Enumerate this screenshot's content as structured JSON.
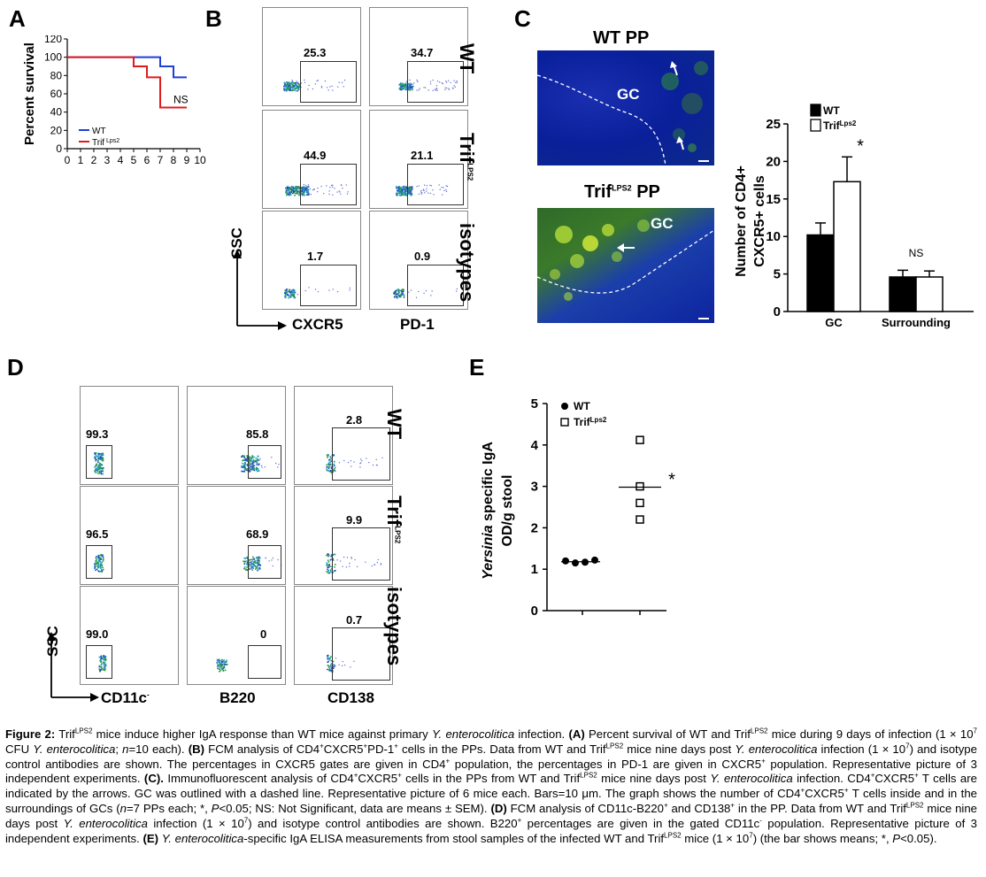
{
  "panels": {
    "A": "A",
    "B": "B",
    "C": "C",
    "D": "D",
    "E": "E"
  },
  "chart_data": [
    {
      "type": "line",
      "panel": "A",
      "ylabel": "Percent survival",
      "xlim": [
        0,
        10
      ],
      "ylim": [
        0,
        120
      ],
      "xticks": [
        "0",
        "1",
        "2",
        "3",
        "4",
        "5",
        "6",
        "7",
        "8",
        "9",
        "10"
      ],
      "yticks": [
        "0",
        "20",
        "40",
        "60",
        "80",
        "100",
        "120"
      ],
      "series": [
        {
          "name": "WT",
          "color": "#1f3fd6",
          "x": [
            0,
            5,
            7,
            8,
            9
          ],
          "y": [
            100,
            100,
            90,
            78,
            78
          ]
        },
        {
          "name": "Trif",
          "name_sup": "Lps2",
          "color": "#e01b1b",
          "x": [
            0,
            5,
            6,
            7,
            9
          ],
          "y": [
            100,
            90,
            78,
            45,
            45
          ]
        }
      ],
      "annotation": "NS"
    },
    {
      "type": "bar",
      "panel": "C",
      "ylabel_lines": [
        "Number of CD4+",
        "CXCR5+ cells"
      ],
      "categories": [
        "GC",
        "Surrounding"
      ],
      "ylim": [
        0,
        25
      ],
      "yticks": [
        "0",
        "5",
        "10",
        "15",
        "20",
        "25"
      ],
      "series": [
        {
          "name": "WT",
          "color": "#000000",
          "values": [
            10.2,
            4.6
          ],
          "errors": [
            1.6,
            0.9
          ]
        },
        {
          "name": "Trif",
          "name_sup": "Lps2",
          "color": "#ffffff",
          "values": [
            17.3,
            4.6
          ],
          "errors": [
            3.3,
            0.8
          ]
        }
      ],
      "annotations": [
        "*",
        "NS"
      ]
    },
    {
      "type": "scatter",
      "panel": "E",
      "ylabel_lines": [
        "Yersinia specific IgA",
        "OD/g stool"
      ],
      "ylim": [
        0,
        5
      ],
      "yticks": [
        "0",
        "1",
        "2",
        "3",
        "4",
        "5"
      ],
      "series": [
        {
          "name": "WT",
          "marker": "filled-circle",
          "values": [
            1.2,
            1.15,
            1.17,
            1.22
          ],
          "mean": 1.18
        },
        {
          "name": "Trif",
          "name_sup": "Lps2",
          "marker": "open-square",
          "values": [
            4.12,
            3.0,
            2.6,
            2.2
          ],
          "mean": 2.98
        }
      ],
      "annotation": "*"
    }
  ],
  "panel_b": {
    "row_labels": [
      "WT",
      "Trif",
      "isotypes"
    ],
    "row_label_sup": "LPS2",
    "x_labels": [
      "CXCR5",
      "PD-1"
    ],
    "y_label": "SSC",
    "values": [
      [
        "25.3",
        "34.7"
      ],
      [
        "44.9",
        "21.1"
      ],
      [
        "1.7",
        "0.9"
      ]
    ]
  },
  "panel_c": {
    "top_title": "WT PP",
    "bottom_title_main": "Trif",
    "bottom_title_sup": "LPS2",
    "bottom_title_tail": "PP",
    "gc_label": "GC"
  },
  "panel_d": {
    "row_labels": [
      "WT",
      "Trif",
      "isotypes"
    ],
    "row_label_sup": "LPS2",
    "x_labels": [
      "CD11c",
      "B220",
      "CD138"
    ],
    "x_label_sup": "-",
    "y_label": "SSC",
    "values": [
      [
        "99.3",
        "85.8",
        "2.8"
      ],
      [
        "96.5",
        "68.9",
        "9.9"
      ],
      [
        "99.0",
        "0",
        "0.7"
      ]
    ]
  },
  "caption": {
    "fig_label": "Figure 2:",
    "t1": " Trif",
    "s1": "LPS2",
    "t2": " mice induce higher IgA response than WT mice against primary ",
    "i1": "Y. enterocolitica",
    "t3": " infection. ",
    "bA": "(A)",
    "t4": " Percent survival of WT and Trif",
    "s2": "LPS2",
    "t5": " mice during 9 days of infection (1 × 10",
    "s3": "7",
    "t6": " CFU ",
    "i2": "Y. enterocolitica",
    "t7": "; ",
    "i3": "n",
    "t8": "=10 each). ",
    "bB": "(B)",
    "t9": " FCM analysis of CD4",
    "s4": "+",
    "t10": "CXCR5",
    "s5": "+",
    "t11": "PD-1",
    "s6": "+",
    "t12": " cells in the PPs. Data from WT and Trif",
    "s7": "LPS2",
    "t13": " mice nine days post ",
    "i4": "Y. enterocolitica",
    "t14": " infection (1 × 10",
    "s8": "7",
    "t15": ") and isotype control antibodies are shown. The percentages in CXCR5 gates are given in CD4",
    "s9": "+",
    "t16": " population, the percentages in PD-1 are given in CXCR5",
    "s10": "+",
    "t17": " population. Representative picture of 3 independent experiments. ",
    "bC": "(C).",
    "t18": " Immunofluorescent analysis of CD4",
    "s11": "+",
    "t19": "CXCR5",
    "s12": "+",
    "t20": " cells in the PPs from WT and Trif",
    "s13": "LPS2",
    "t21": " mice nine days post ",
    "i5": "Y. enterocolitica",
    "t22": " infection. CD4",
    "s14": "+",
    "t23": "CXCR5",
    "s15": "+",
    "t24": " T cells are indicated by the arrows. GC was outlined with a dashed line. Representative picture of 6 mice each. Bars=10 μm. The graph shows the number of CD4",
    "s16": "+",
    "t25": "CXCR5",
    "s17": "+",
    "t26": " T cells inside and in the surroundings of GCs (",
    "i6": "n",
    "t27": "=7 PPs each; *, ",
    "i7": "P",
    "t28": "<0.05; NS: Not Significant, data are means ± SEM). ",
    "bD": "(D)",
    "t29": " FCM analysis of CD11c-B220",
    "s18": "+",
    "t30": " and CD138",
    "s19": "+",
    "t31": " in the PP. Data from WT and Trif",
    "s20": "LPS2",
    "t32": " mice nine days post ",
    "i8": "Y. enterocolitica",
    "t33": " infection (1 × 10",
    "s21": "7",
    "t34": ") and isotype control antibodies are shown. B220",
    "s22": "+",
    "t35": " percentages are given in the gated CD11c",
    "s23": "-",
    "t36": " population. Representative picture of 3 independent experiments. ",
    "bE": "(E)",
    "t37": " ",
    "i9": "Y. enterocolitica",
    "t38": "-specific IgA ELISA measurements from stool samples of the infected WT and Trif",
    "s24": "LPS2",
    "t39": " mice (1 × 10",
    "s25": "7",
    "t40": ") (the bar shows means; *, ",
    "i10": "P",
    "t41": "<0.05)."
  }
}
